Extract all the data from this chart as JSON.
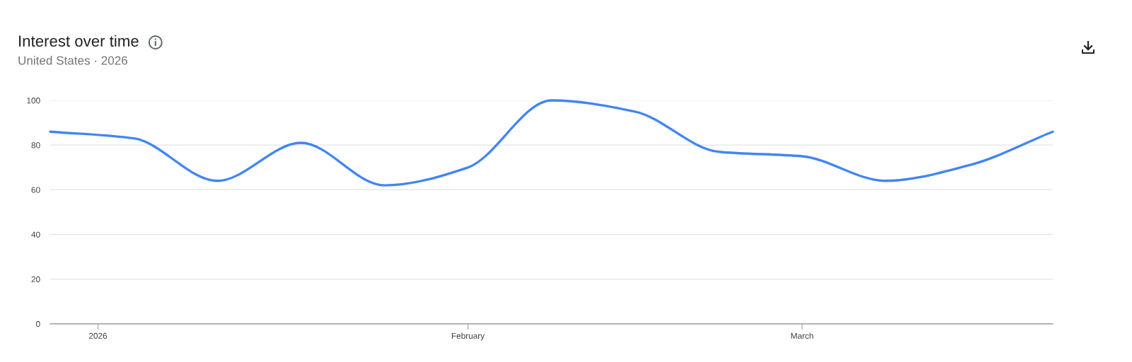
{
  "chart_data": {
    "type": "line",
    "title": "Interest over time",
    "subtitle": "United States · 2026",
    "x": [
      "2025-12-28",
      "2026-01-04",
      "2026-01-11",
      "2026-01-18",
      "2026-01-25",
      "2026-02-01",
      "2026-02-08",
      "2026-02-15",
      "2026-02-22",
      "2026-03-01",
      "2026-03-08",
      "2026-03-15",
      "2026-03-22"
    ],
    "series": [
      {
        "color": "#4285f4",
        "values": [
          86,
          83,
          64,
          81,
          62,
          70,
          100,
          95,
          77,
          75,
          64,
          71,
          86
        ]
      }
    ],
    "xlim": [
      "2025-12-28",
      "2026-03-22"
    ],
    "xticks": [
      {
        "value": "2026-01-01",
        "label": "2026"
      },
      {
        "value": "2026-02-01",
        "label": "February"
      },
      {
        "value": "2026-03-01",
        "label": "March"
      }
    ],
    "ylim": [
      0,
      100
    ],
    "yticks": [
      0,
      20,
      40,
      60,
      80,
      100
    ],
    "grid": "y",
    "line_style": "solid"
  }
}
